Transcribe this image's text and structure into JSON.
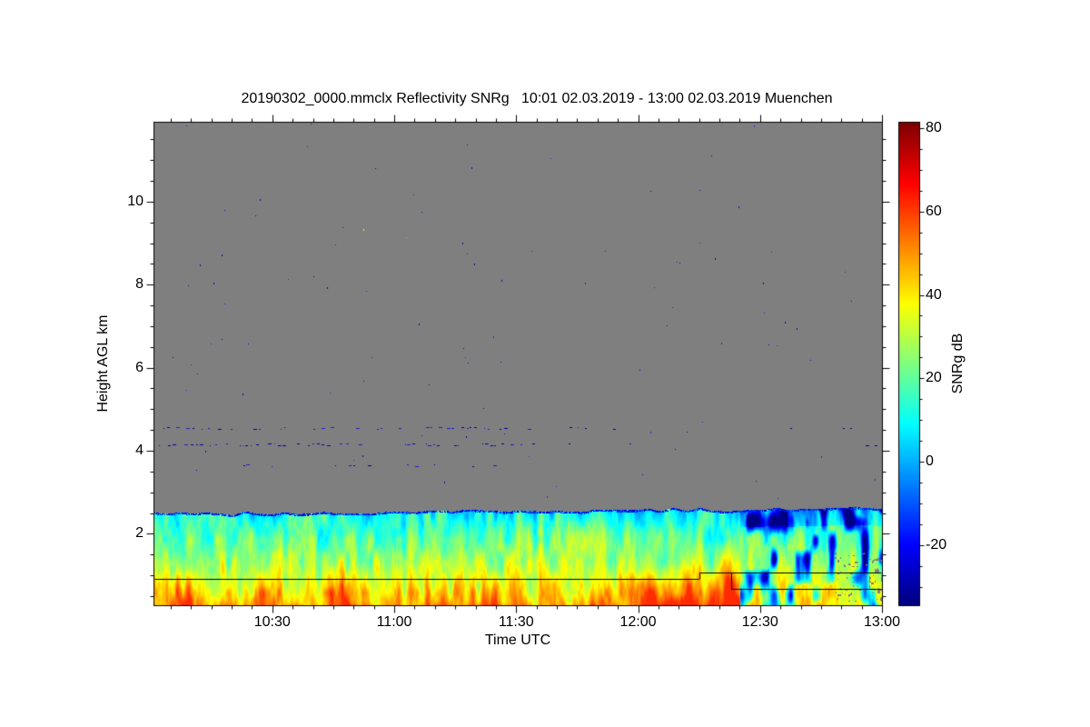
{
  "chart_data": {
    "type": "heatmap",
    "title": "20190302_0000.mmclx Reflectivity SNRg   10:01 02.03.2019 - 13:00 02.03.2019 Muenchen",
    "source_file": "20190302_0000.mmclx",
    "product": "Reflectivity SNRg",
    "time_start": "10:01 02.03.2019",
    "time_end": "13:00 02.03.2019",
    "station": "Muenchen",
    "xlabel": "Time UTC",
    "ylabel": "Height AGL km",
    "colorbar_label": "SNRg dB",
    "x_start_hhmm": "10:01",
    "x_range_minutes": 179,
    "x_ticks": [
      "10:30",
      "11:00",
      "11:30",
      "12:00",
      "12:30",
      "13:00"
    ],
    "x_minor_tick_minutes": 5,
    "y_ticks_km": [
      2,
      4,
      6,
      8,
      10
    ],
    "y_minor_tick_km": 0.5,
    "y_range_km": [
      0.28,
      11.9
    ],
    "colorbar_ticks_db": [
      80,
      60,
      40,
      20,
      0,
      -20
    ],
    "colorbar_minor_tick_db": 5,
    "colorbar_range_db": [
      -34.4,
      81.3
    ],
    "colormap": "jet (dark blue -> blue -> cyan -> green -> yellow -> orange -> red -> dark red)",
    "colors": {
      "no_signal_gray": "#7f7f7f",
      "frame": "#000000",
      "page_background": "#ffffff",
      "overlay_line": "#000000"
    },
    "legend_position": "right colorbar",
    "grid": false,
    "features": {
      "boundary_layer": {
        "top_km": 2.5,
        "extent": "entire 10:01-13:00 period",
        "snr_db_near_top": 8,
        "snr_db_near_surface": 40,
        "texture": "vertical convective streaks, cyan/green/yellow with orange maxima near the surface",
        "top_fringe": "thin dark-blue speckled edge at echo top"
      },
      "weak_echo_period": {
        "start": "12:25",
        "end": "13:00",
        "description": "dark blue low-SNR vertical streaks below ~2.3 km with small gray data gaps near 0.6 km"
      },
      "surface_hotspot_times": [
        "10:08",
        "10:46",
        "11:24",
        "12:06",
        "12:13",
        "12:22"
      ],
      "clutter_dot_bands_km": [
        4.55,
        4.15,
        3.65
      ],
      "clutter_bands_dense_until": "11:35",
      "scattered_noise_dots": "sparse single-pixel dark-blue dots over the gray no-signal region, one yellow and one green dot near 9.2 km",
      "overlay_line_segments": [
        {
          "from": "10:01",
          "to": "12:15",
          "height_km": 0.92
        },
        {
          "from": "12:15",
          "to": "13:00",
          "height_km": 1.07,
          "connect_at_start_from_km": 0.92
        },
        {
          "from": "12:23",
          "to": "13:00",
          "height_km": 0.67,
          "connect_at_start_from_km": 1.07
        }
      ]
    }
  }
}
